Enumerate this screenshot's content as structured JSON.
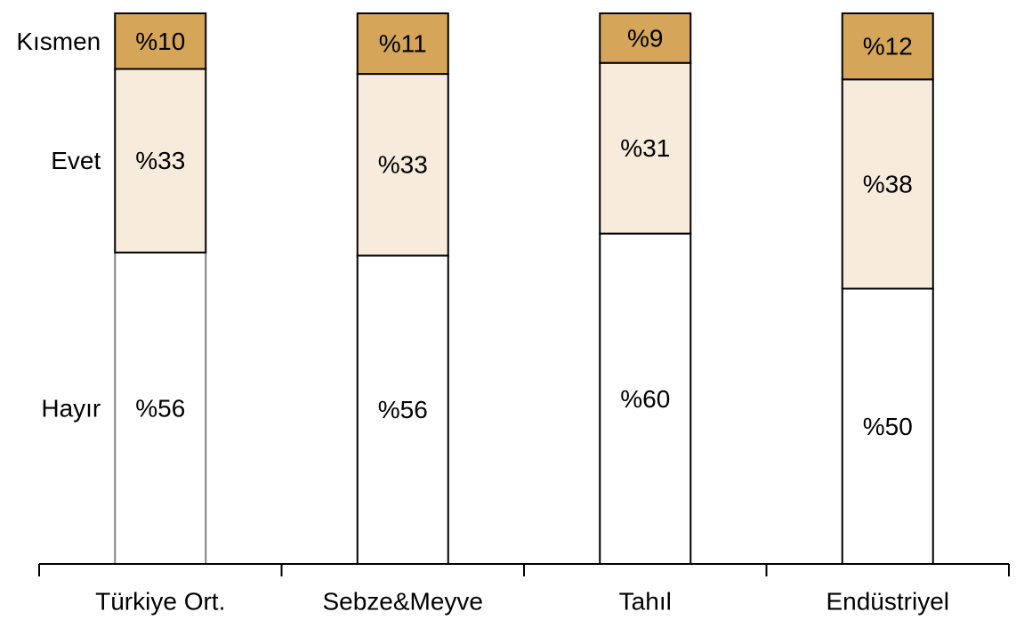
{
  "chart_data": {
    "type": "bar",
    "stacked": true,
    "normalized": true,
    "categories": [
      "Türkiye Ort.",
      "Sebze&Meyve",
      "Tahıl",
      "Endüstriyel"
    ],
    "series": [
      {
        "name": "Hayır",
        "values": [
          56,
          56,
          60,
          50
        ],
        "labels": [
          "%56",
          "%56",
          "%60",
          "%50"
        ],
        "color": "#ffffff"
      },
      {
        "name": "Evet",
        "values": [
          33,
          33,
          31,
          38
        ],
        "labels": [
          "%33",
          "%33",
          "%31",
          "%38"
        ],
        "color": "#f7ecdc"
      },
      {
        "name": "Kısmen",
        "values": [
          10,
          11,
          9,
          12
        ],
        "labels": [
          "%10",
          "%11",
          "%9",
          "%12"
        ],
        "color": "#d5a65a"
      }
    ],
    "ylim": [
      0,
      100
    ],
    "grid": false,
    "legend": "left-inline",
    "title": "",
    "xlabel": "",
    "ylabel": ""
  }
}
